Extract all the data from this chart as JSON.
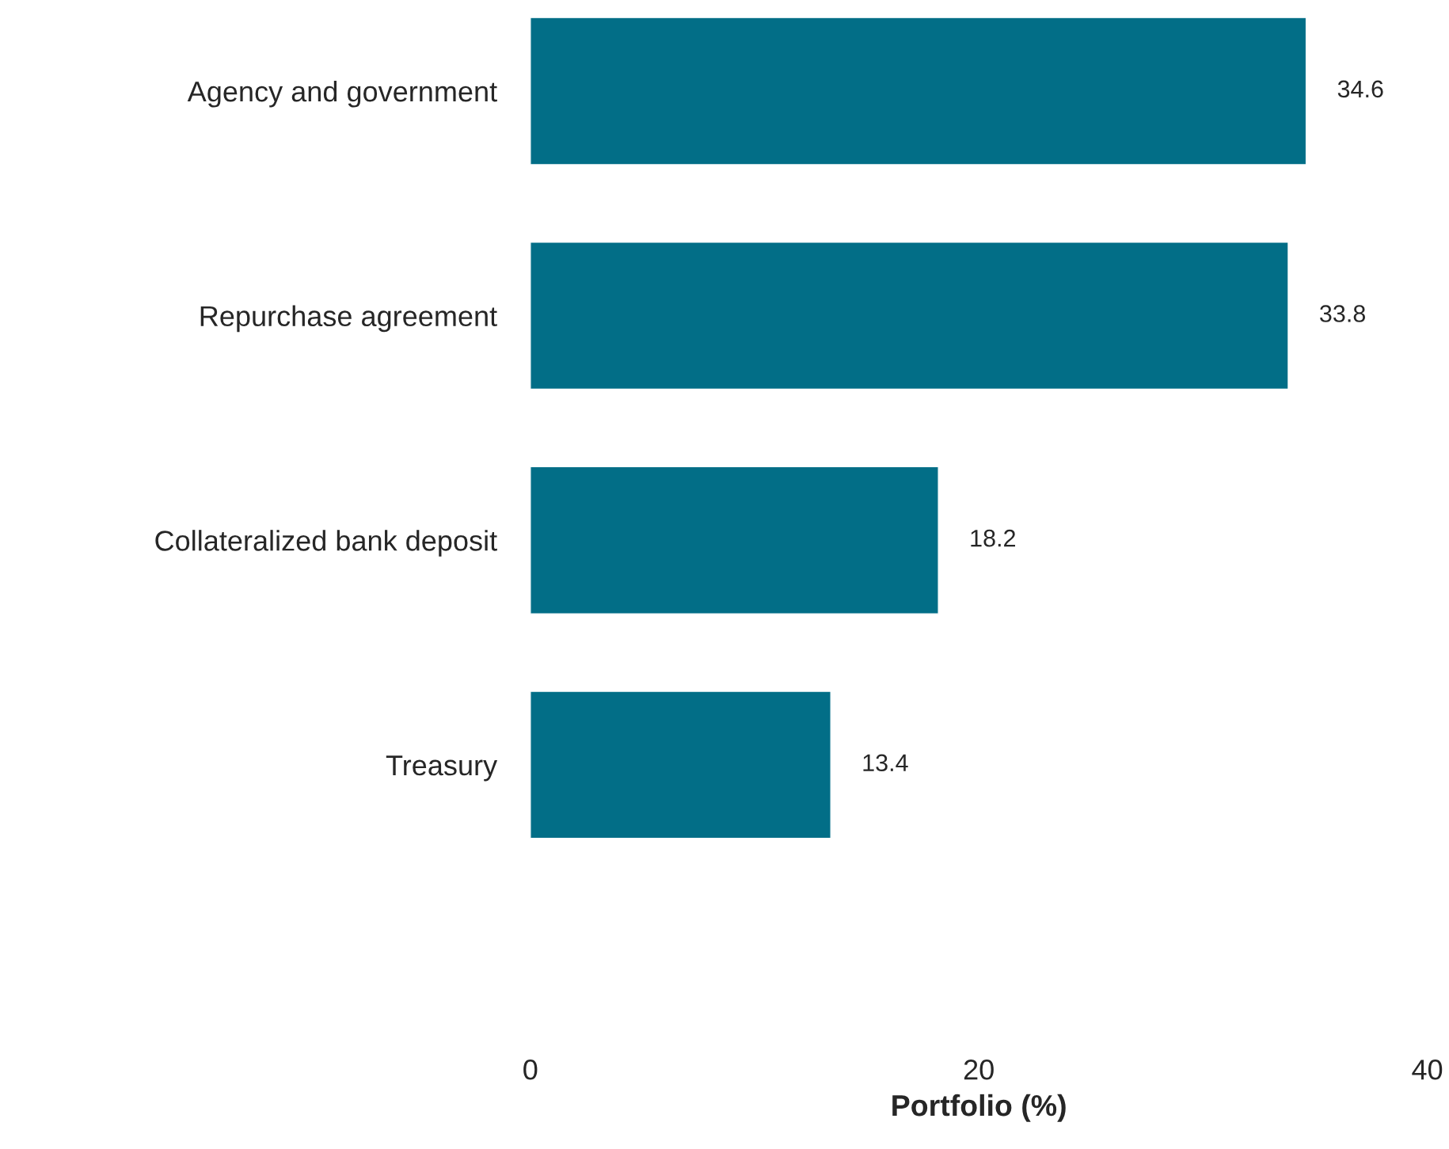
{
  "chart_data": {
    "type": "bar",
    "orientation": "horizontal",
    "xlabel": "Portfolio (%)",
    "categories": [
      "Agency and government",
      "Repurchase agreement",
      "Collateralized bank deposit",
      "Treasury"
    ],
    "values": [
      34.6,
      33.8,
      18.2,
      13.4
    ],
    "color": "#026e87",
    "xlim": [
      0,
      40
    ],
    "xticks": [
      0,
      20,
      40
    ],
    "data_labels": true,
    "grid": false,
    "legend": false
  }
}
